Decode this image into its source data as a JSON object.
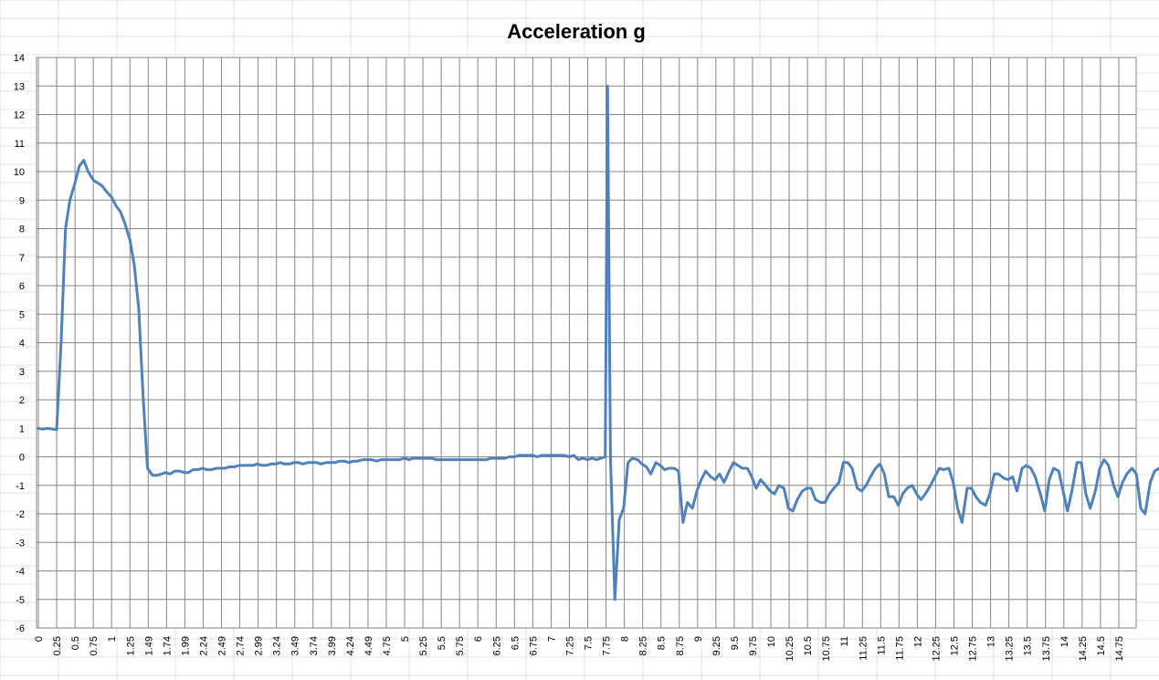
{
  "chart_data": {
    "type": "line",
    "title": "Acceleration g",
    "xlabel": "",
    "ylabel": "",
    "ylim": [
      -6,
      14
    ],
    "yticks": [
      "-6",
      "-5",
      "-4",
      "-3",
      "-2",
      "-1",
      "0",
      "1",
      "2",
      "3",
      "4",
      "5",
      "6",
      "7",
      "8",
      "9",
      "10",
      "11",
      "12",
      "13",
      "14"
    ],
    "xticks": [
      "0",
      "0.25",
      "0.5",
      "0.75",
      "1",
      "1.25",
      "1.49",
      "1.74",
      "1.99",
      "2.24",
      "2.49",
      "2.74",
      "2.99",
      "3.24",
      "3.49",
      "3.74",
      "3.99",
      "4.24",
      "4.49",
      "4.75",
      "5",
      "5.25",
      "5.5",
      "5.75",
      "6",
      "6.25",
      "6.5",
      "6.75",
      "7",
      "7.25",
      "7.5",
      "7.75",
      "8",
      "8.25",
      "8.5",
      "8.75",
      "9",
      "9.25",
      "9.5",
      "9.75",
      "10",
      "10.25",
      "10.5",
      "10.75",
      "11",
      "11.25",
      "11.5",
      "11.75",
      "12",
      "12.25",
      "12.5",
      "12.75",
      "13",
      "13.25",
      "13.5",
      "13.75",
      "14",
      "14.25",
      "14.5",
      "14.75"
    ],
    "grid": true,
    "legend": "none",
    "line_color": "#4F81BD",
    "series": [
      {
        "values": [
          [
            0,
            1
          ],
          [
            0.06,
            0.97
          ],
          [
            0.12,
            1.0
          ],
          [
            0.18,
            0.98
          ],
          [
            0.25,
            0.95
          ],
          [
            0.31,
            4
          ],
          [
            0.37,
            8
          ],
          [
            0.43,
            9
          ],
          [
            0.5,
            9.6
          ],
          [
            0.56,
            10.2
          ],
          [
            0.62,
            10.4
          ],
          [
            0.68,
            10.0
          ],
          [
            0.75,
            9.7
          ],
          [
            0.81,
            9.6
          ],
          [
            0.87,
            9.5
          ],
          [
            0.93,
            9.3
          ],
          [
            1.0,
            9.1
          ],
          [
            1.06,
            8.8
          ],
          [
            1.12,
            8.6
          ],
          [
            1.18,
            8.2
          ],
          [
            1.25,
            7.6
          ],
          [
            1.31,
            6.7
          ],
          [
            1.37,
            5.2
          ],
          [
            1.43,
            2.1
          ],
          [
            1.49,
            -0.4
          ],
          [
            1.56,
            -0.65
          ],
          [
            1.62,
            -0.65
          ],
          [
            1.68,
            -0.6
          ],
          [
            1.74,
            -0.55
          ],
          [
            1.8,
            -0.6
          ],
          [
            1.86,
            -0.5
          ],
          [
            1.93,
            -0.5
          ],
          [
            1.99,
            -0.55
          ],
          [
            2.05,
            -0.55
          ],
          [
            2.11,
            -0.45
          ],
          [
            2.18,
            -0.45
          ],
          [
            2.24,
            -0.4
          ],
          [
            2.3,
            -0.45
          ],
          [
            2.36,
            -0.45
          ],
          [
            2.43,
            -0.4
          ],
          [
            2.49,
            -0.4
          ],
          [
            2.55,
            -0.4
          ],
          [
            2.61,
            -0.35
          ],
          [
            2.68,
            -0.35
          ],
          [
            2.74,
            -0.3
          ],
          [
            2.8,
            -0.3
          ],
          [
            2.86,
            -0.3
          ],
          [
            2.93,
            -0.3
          ],
          [
            2.99,
            -0.25
          ],
          [
            3.05,
            -0.3
          ],
          [
            3.11,
            -0.3
          ],
          [
            3.18,
            -0.25
          ],
          [
            3.24,
            -0.25
          ],
          [
            3.3,
            -0.2
          ],
          [
            3.36,
            -0.25
          ],
          [
            3.43,
            -0.25
          ],
          [
            3.49,
            -0.2
          ],
          [
            3.55,
            -0.2
          ],
          [
            3.61,
            -0.25
          ],
          [
            3.68,
            -0.2
          ],
          [
            3.74,
            -0.2
          ],
          [
            3.8,
            -0.2
          ],
          [
            3.86,
            -0.25
          ],
          [
            3.93,
            -0.2
          ],
          [
            3.99,
            -0.2
          ],
          [
            4.05,
            -0.2
          ],
          [
            4.11,
            -0.15
          ],
          [
            4.18,
            -0.15
          ],
          [
            4.24,
            -0.2
          ],
          [
            4.3,
            -0.15
          ],
          [
            4.36,
            -0.15
          ],
          [
            4.43,
            -0.1
          ],
          [
            4.49,
            -0.1
          ],
          [
            4.55,
            -0.1
          ],
          [
            4.62,
            -0.15
          ],
          [
            4.68,
            -0.1
          ],
          [
            4.75,
            -0.1
          ],
          [
            4.81,
            -0.1
          ],
          [
            4.87,
            -0.1
          ],
          [
            4.93,
            -0.1
          ],
          [
            5.0,
            -0.05
          ],
          [
            5.06,
            -0.1
          ],
          [
            5.12,
            -0.05
          ],
          [
            5.18,
            -0.05
          ],
          [
            5.25,
            -0.05
          ],
          [
            5.31,
            -0.05
          ],
          [
            5.37,
            -0.05
          ],
          [
            5.43,
            -0.1
          ],
          [
            5.5,
            -0.1
          ],
          [
            5.56,
            -0.1
          ],
          [
            5.62,
            -0.1
          ],
          [
            5.68,
            -0.1
          ],
          [
            5.75,
            -0.1
          ],
          [
            5.81,
            -0.1
          ],
          [
            5.87,
            -0.1
          ],
          [
            5.93,
            -0.1
          ],
          [
            6.0,
            -0.1
          ],
          [
            6.06,
            -0.1
          ],
          [
            6.12,
            -0.1
          ],
          [
            6.18,
            -0.05
          ],
          [
            6.25,
            -0.05
          ],
          [
            6.31,
            -0.05
          ],
          [
            6.37,
            -0.05
          ],
          [
            6.43,
            0.0
          ],
          [
            6.5,
            0.0
          ],
          [
            6.56,
            0.05
          ],
          [
            6.62,
            0.05
          ],
          [
            6.68,
            0.05
          ],
          [
            6.75,
            0.05
          ],
          [
            6.81,
            0.0
          ],
          [
            6.87,
            0.05
          ],
          [
            6.93,
            0.05
          ],
          [
            7.0,
            0.05
          ],
          [
            7.06,
            0.05
          ],
          [
            7.12,
            0.05
          ],
          [
            7.18,
            0.05
          ],
          [
            7.25,
            0.0
          ],
          [
            7.31,
            0.05
          ],
          [
            7.37,
            -0.1
          ],
          [
            7.43,
            -0.05
          ],
          [
            7.5,
            -0.1
          ],
          [
            7.56,
            -0.05
          ],
          [
            7.62,
            -0.1
          ],
          [
            7.68,
            -0.05
          ],
          [
            7.74,
            0.0
          ],
          [
            7.77,
            13.0
          ],
          [
            7.81,
            0.0
          ],
          [
            7.87,
            -5.0
          ],
          [
            7.93,
            -2.2
          ],
          [
            7.99,
            -1.8
          ],
          [
            8.05,
            -0.2
          ],
          [
            8.11,
            -0.05
          ],
          [
            8.18,
            -0.1
          ],
          [
            8.24,
            -0.25
          ],
          [
            8.3,
            -0.35
          ],
          [
            8.36,
            -0.6
          ],
          [
            8.43,
            -0.2
          ],
          [
            8.49,
            -0.3
          ],
          [
            8.55,
            -0.45
          ],
          [
            8.61,
            -0.4
          ],
          [
            8.68,
            -0.4
          ],
          [
            8.74,
            -0.5
          ],
          [
            8.8,
            -2.3
          ],
          [
            8.86,
            -1.6
          ],
          [
            8.93,
            -1.8
          ],
          [
            8.99,
            -1.2
          ],
          [
            9.05,
            -0.8
          ],
          [
            9.11,
            -0.5
          ],
          [
            9.18,
            -0.7
          ],
          [
            9.24,
            -0.8
          ],
          [
            9.3,
            -0.6
          ],
          [
            9.36,
            -0.9
          ],
          [
            9.43,
            -0.5
          ],
          [
            9.49,
            -0.2
          ],
          [
            9.55,
            -0.3
          ],
          [
            9.61,
            -0.4
          ],
          [
            9.68,
            -0.4
          ],
          [
            9.74,
            -0.7
          ],
          [
            9.8,
            -1.1
          ],
          [
            9.86,
            -0.8
          ],
          [
            9.93,
            -1.0
          ],
          [
            9.99,
            -1.2
          ],
          [
            10.05,
            -1.3
          ],
          [
            10.11,
            -1.0
          ],
          [
            10.18,
            -1.1
          ],
          [
            10.24,
            -1.8
          ],
          [
            10.3,
            -1.9
          ],
          [
            10.36,
            -1.5
          ],
          [
            10.43,
            -1.2
          ],
          [
            10.49,
            -1.1
          ],
          [
            10.55,
            -1.1
          ],
          [
            10.61,
            -1.5
          ],
          [
            10.68,
            -1.6
          ],
          [
            10.74,
            -1.6
          ],
          [
            10.8,
            -1.3
          ],
          [
            10.86,
            -1.1
          ],
          [
            10.93,
            -0.9
          ],
          [
            10.99,
            -0.2
          ],
          [
            11.05,
            -0.2
          ],
          [
            11.11,
            -0.4
          ],
          [
            11.18,
            -1.1
          ],
          [
            11.24,
            -1.2
          ],
          [
            11.3,
            -1.0
          ],
          [
            11.36,
            -0.7
          ],
          [
            11.43,
            -0.4
          ],
          [
            11.49,
            -0.25
          ],
          [
            11.55,
            -0.6
          ],
          [
            11.61,
            -1.4
          ],
          [
            11.68,
            -1.4
          ],
          [
            11.74,
            -1.7
          ],
          [
            11.8,
            -1.3
          ],
          [
            11.86,
            -1.1
          ],
          [
            11.93,
            -1.0
          ],
          [
            11.99,
            -1.3
          ],
          [
            12.05,
            -1.5
          ],
          [
            12.11,
            -1.3
          ],
          [
            12.18,
            -1.0
          ],
          [
            12.24,
            -0.7
          ],
          [
            12.3,
            -0.4
          ],
          [
            12.36,
            -0.45
          ],
          [
            12.43,
            -0.4
          ],
          [
            12.49,
            -0.9
          ],
          [
            12.55,
            -1.8
          ],
          [
            12.61,
            -2.3
          ],
          [
            12.68,
            -1.1
          ],
          [
            12.74,
            -1.1
          ],
          [
            12.8,
            -1.4
          ],
          [
            12.86,
            -1.6
          ],
          [
            12.93,
            -1.7
          ],
          [
            12.99,
            -1.3
          ],
          [
            13.05,
            -0.6
          ],
          [
            13.11,
            -0.6
          ],
          [
            13.18,
            -0.75
          ],
          [
            13.24,
            -0.8
          ],
          [
            13.3,
            -0.7
          ],
          [
            13.36,
            -1.2
          ],
          [
            13.43,
            -0.4
          ],
          [
            13.49,
            -0.3
          ],
          [
            13.55,
            -0.4
          ],
          [
            13.61,
            -0.7
          ],
          [
            13.68,
            -1.3
          ],
          [
            13.74,
            -1.9
          ],
          [
            13.8,
            -0.8
          ],
          [
            13.86,
            -0.4
          ],
          [
            13.93,
            -0.5
          ],
          [
            13.99,
            -1.2
          ],
          [
            14.05,
            -1.9
          ],
          [
            14.11,
            -1.2
          ],
          [
            14.18,
            -0.2
          ],
          [
            14.24,
            -0.2
          ],
          [
            14.3,
            -1.3
          ],
          [
            14.36,
            -1.8
          ],
          [
            14.43,
            -1.2
          ],
          [
            14.49,
            -0.4
          ],
          [
            14.55,
            -0.1
          ],
          [
            14.61,
            -0.3
          ],
          [
            14.68,
            -1.0
          ],
          [
            14.74,
            -1.4
          ],
          [
            14.8,
            -0.9
          ],
          [
            14.86,
            -0.6
          ],
          [
            14.93,
            -0.4
          ],
          [
            14.99,
            -0.6
          ],
          [
            15.05,
            -1.8
          ],
          [
            15.11,
            -2.0
          ],
          [
            15.18,
            -0.9
          ],
          [
            15.24,
            -0.5
          ],
          [
            15.3,
            -0.4
          ]
        ]
      }
    ]
  }
}
